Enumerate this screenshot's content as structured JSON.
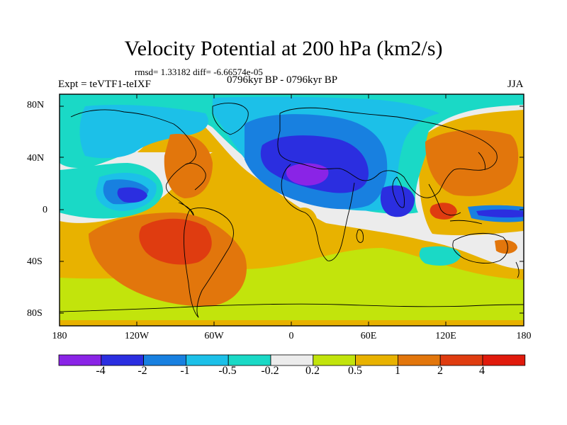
{
  "title": "Velocity Potential at 200 hPa (km2/s)",
  "stats": "rmsd= 1.33182 diff= -6.66574e-05",
  "experiment": "Expt = teVTF1-teIXF",
  "period": "0796kyr BP - 0796kyr BP",
  "season": "JJA",
  "y_ticks": [
    "80N",
    "40N",
    "0",
    "40S",
    "80S"
  ],
  "x_ticks": [
    "180",
    "120W",
    "60W",
    "0",
    "60E",
    "120E",
    "180"
  ],
  "colorbar": {
    "labels": [
      "-4",
      "-2",
      "-1",
      "-0.5",
      "-0.2",
      "0.2",
      "0.5",
      "1",
      "2",
      "4"
    ],
    "colors": [
      "#8a24e6",
      "#2b2ee0",
      "#1880e0",
      "#1cc0e8",
      "#1ad9c6",
      "#ececec",
      "#c2e40c",
      "#e8b200",
      "#e2760c",
      "#df3c10",
      "#e01a0c"
    ]
  },
  "map": {
    "background_color": "#e8b200",
    "projection": "cylindrical-equidistant",
    "lon_range": [
      -180,
      180
    ],
    "lat_range": [
      -90,
      90
    ]
  }
}
